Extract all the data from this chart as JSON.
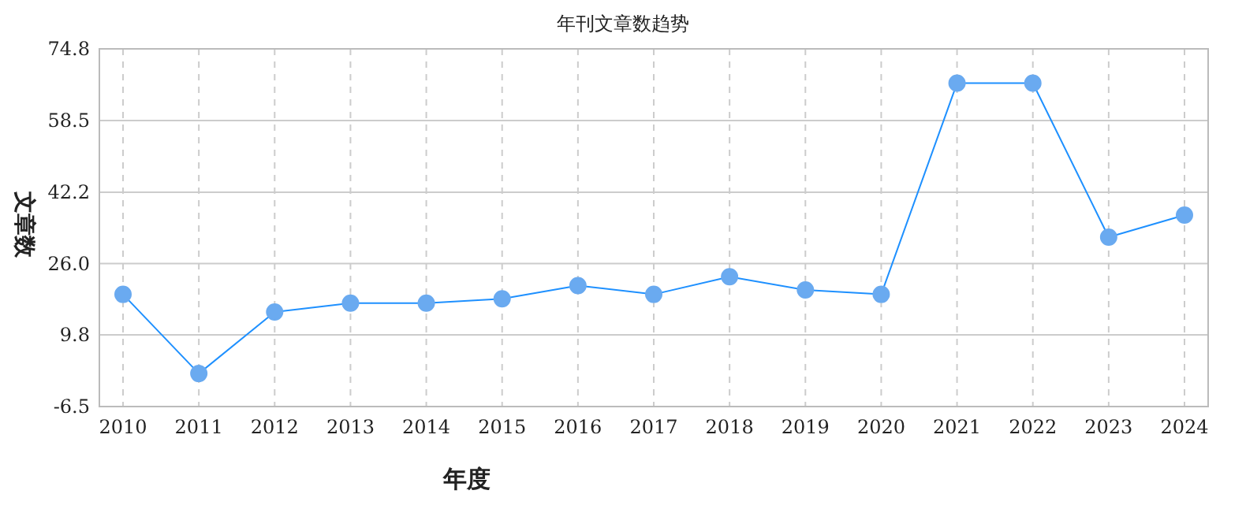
{
  "chart_data": {
    "type": "line",
    "title": "年刊文章数趋势",
    "xlabel": "年度",
    "ylabel": "文章数",
    "categories": [
      "2010",
      "2011",
      "2012",
      "2013",
      "2014",
      "2015",
      "2016",
      "2017",
      "2018",
      "2019",
      "2020",
      "2021",
      "2022",
      "2023",
      "2024"
    ],
    "series": [
      {
        "color": "#1e90ff",
        "values": [
          19,
          1,
          15,
          17,
          17,
          18,
          21,
          19,
          23,
          20,
          19,
          67,
          67,
          32,
          37
        ]
      }
    ],
    "ylim": [
      -6.5,
      74.8
    ],
    "yticks": [
      -6.5,
      9.8,
      {
        "value": 26,
        "label": "26.0"
      },
      42.2,
      58.5,
      74.8
    ],
    "grid": true,
    "marker": "circle",
    "line_style": "solid"
  }
}
